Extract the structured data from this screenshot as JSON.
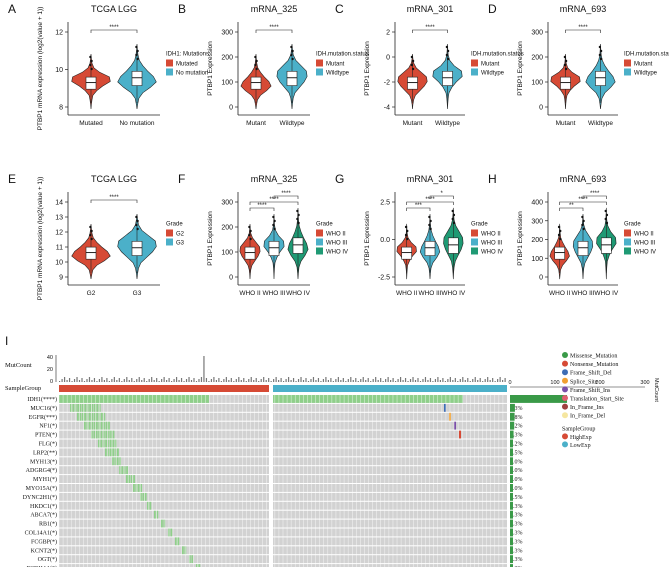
{
  "colors": {
    "red": "#d64a35",
    "blue": "#4bb0c9",
    "green": "#1f9a74",
    "gray": "#d2d2d2",
    "bargreen": "#3a9a48",
    "mutgreen": "#8fcf8a"
  },
  "panels": [
    {
      "letter": "A",
      "title": "TCGA LGG",
      "ylabel": "PTBP1 mRNA expression (log2(value + 1))",
      "legend_title": "IDH1: Mutations",
      "legend": [
        "Mutated",
        "No mutation"
      ],
      "xcats": [
        "Mutated",
        "No mutation"
      ],
      "yticks": [
        "8",
        "10",
        "12"
      ],
      "sig": [
        "****"
      ]
    },
    {
      "letter": "B",
      "title": "mRNA_325",
      "ylabel": "PTBP1 Expression",
      "legend_title": "IDH.mutation.status",
      "legend": [
        "Mutant",
        "Wildtype"
      ],
      "xcats": [
        "Mutant",
        "Wildtype"
      ],
      "yticks": [
        "0",
        "100",
        "200",
        "300"
      ],
      "sig": [
        "****"
      ]
    },
    {
      "letter": "C",
      "title": "mRNA_301",
      "ylabel": "PTBP1 Expression",
      "legend_title": "IDH.mutation.status",
      "legend": [
        "Mutant",
        "Wildtype"
      ],
      "xcats": [
        "Mutant",
        "Wildtype"
      ],
      "yticks": [
        "-4",
        "-2",
        "0",
        "2"
      ],
      "sig": [
        "****"
      ]
    },
    {
      "letter": "D",
      "title": "mRNA_693",
      "ylabel": "PTBP1 Expression",
      "legend_title": "IDH.mutation.status",
      "legend": [
        "Mutant",
        "Wildtype"
      ],
      "xcats": [
        "Mutant",
        "Wildtype"
      ],
      "yticks": [
        "0",
        "100",
        "200",
        "300"
      ],
      "sig": [
        "****"
      ]
    },
    {
      "letter": "E",
      "title": "TCGA LGG",
      "ylabel": "PTBP1 mRNA expression (log2(value + 1))",
      "legend_title": "Grade",
      "legend": [
        "G2",
        "G3"
      ],
      "xcats": [
        "G2",
        "G3"
      ],
      "yticks": [
        "9",
        "10",
        "11",
        "12",
        "13",
        "14"
      ],
      "sig": [
        "****"
      ]
    },
    {
      "letter": "F",
      "title": "mRNA_325",
      "ylabel": "PTBP1 Expression",
      "legend_title": "Grade",
      "legend": [
        "WHO II",
        "WHO III",
        "WHO IV"
      ],
      "xcats": [
        "WHO II",
        "WHO III",
        "WHO IV"
      ],
      "yticks": [
        "0",
        "100",
        "200",
        "300"
      ],
      "sig": [
        "****",
        "****",
        "****"
      ]
    },
    {
      "letter": "G",
      "title": "mRNA_301",
      "ylabel": "PTBP1 Expression",
      "legend_title": "Grade",
      "legend": [
        "WHO II",
        "WHO III",
        "WHO IV"
      ],
      "xcats": [
        "WHO II",
        "WHO III",
        "WHO IV"
      ],
      "yticks": [
        "-2.5",
        "0.0",
        "2.5"
      ],
      "sig": [
        "***",
        "****",
        "*"
      ]
    },
    {
      "letter": "H",
      "title": "mRNA_693",
      "ylabel": "PTBP1 Expression",
      "legend_title": "Grade",
      "legend": [
        "WHO II",
        "WHO III",
        "WHO IV"
      ],
      "xcats": [
        "WHO II",
        "WHO III",
        "WHO IV"
      ],
      "yticks": [
        "0",
        "100",
        "200",
        "300",
        "400"
      ],
      "sig": [
        "**",
        "****",
        "****"
      ]
    }
  ],
  "oncoplot": {
    "letter": "I",
    "mutcount_label": "MutCount",
    "mutcount_ticks": [
      "0",
      "20",
      "40"
    ],
    "samplegroup_label": "SampleGroup",
    "top_axis_ticks": [
      "0",
      "100",
      "200",
      "300"
    ],
    "side_title": "MutCount",
    "genes": [
      {
        "name": "IDH1(****)",
        "pct": "84.5%",
        "v": 84.5
      },
      {
        "name": "MUC16(*)",
        "pct": "7.3%",
        "v": 7.3
      },
      {
        "name": "EGFR(***)",
        "pct": "6.8%",
        "v": 6.8
      },
      {
        "name": "NF1(*)",
        "pct": "6.2%",
        "v": 6.2
      },
      {
        "name": "PTEN(*)",
        "pct": "5.3%",
        "v": 5.3
      },
      {
        "name": "FLG(*)",
        "pct": "4.2%",
        "v": 4.2
      },
      {
        "name": "LRP2(**)",
        "pct": "3.5%",
        "v": 3.5
      },
      {
        "name": "MYH13(*)",
        "pct": "2.0%",
        "v": 2.0
      },
      {
        "name": "ADGRG4(*)",
        "pct": "2.0%",
        "v": 2.0
      },
      {
        "name": "MYH1(*)",
        "pct": "2.0%",
        "v": 2.0
      },
      {
        "name": "MYO15A(*)",
        "pct": "2.0%",
        "v": 2.0
      },
      {
        "name": "DYNC2H1(*)",
        "pct": "1.5%",
        "v": 1.5
      },
      {
        "name": "HKDC1(*)",
        "pct": "1.3%",
        "v": 1.3
      },
      {
        "name": "ABCA7(*)",
        "pct": "1.3%",
        "v": 1.3
      },
      {
        "name": "RB1(*)",
        "pct": "1.3%",
        "v": 1.3
      },
      {
        "name": "COL14A1(*)",
        "pct": "1.3%",
        "v": 1.3
      },
      {
        "name": "FCGBP(*)",
        "pct": "1.3%",
        "v": 1.3
      },
      {
        "name": "KCNT2(*)",
        "pct": "1.3%",
        "v": 1.3
      },
      {
        "name": "OGT(*)",
        "pct": "1.3%",
        "v": 1.3
      },
      {
        "name": "PCDHA1(*)",
        "pct": "1.3%",
        "v": 1.3
      }
    ],
    "legend": [
      {
        "label": "Missense_Mutation",
        "color": "#3a9a48"
      },
      {
        "label": "Nonsense_Mutation",
        "color": "#d64a35"
      },
      {
        "label": "Frame_Shift_Del",
        "color": "#3d6db5"
      },
      {
        "label": "Splice_Site",
        "color": "#f0a030"
      },
      {
        "label": "Frame_Shift_Ins",
        "color": "#7a4fa8"
      },
      {
        "label": "Translation_Start_Site",
        "color": "#e06070"
      },
      {
        "label": "In_Frame_Ins",
        "color": "#a04040"
      },
      {
        "label": "In_Frame_Del",
        "color": "#f5e6a0"
      }
    ],
    "group_legend_title": "SampleGroup",
    "group_legend": [
      {
        "label": "HighExp",
        "color": "#d64a35"
      },
      {
        "label": "LowExp",
        "color": "#4bb0c9"
      }
    ]
  }
}
